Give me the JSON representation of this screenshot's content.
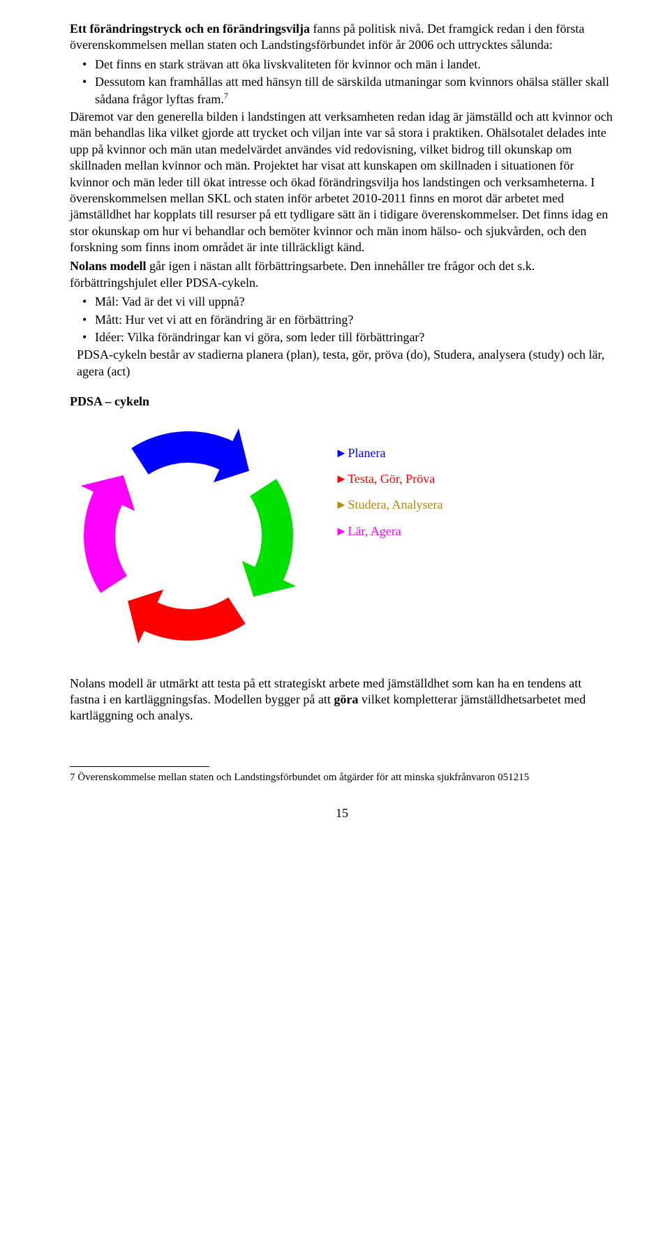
{
  "colors": {
    "text": "#000000",
    "planera": "#0000ff",
    "testa": "#ff0000",
    "studera": "#b8860b",
    "lar": "#ff00ff",
    "cycle_blue": "#0000ff",
    "cycle_green": "#00e000",
    "cycle_red": "#ff0000",
    "cycle_magenta": "#ff00ff",
    "background": "#ffffff"
  },
  "typography": {
    "body_font": "Times New Roman",
    "body_size_pt": 13,
    "footnote_size_pt": 11
  },
  "intro_line_bold": "Ett förändringstryck och en förändringsvilja",
  "intro_line_rest": " fanns på politisk nivå. Det framgick redan i den första överenskommelsen mellan staten och Landstingsförbundet inför år 2006 och uttrycktes sålunda:",
  "bullets1": [
    "Det finns en stark strävan att öka livskvaliteten för kvinnor och män i landet.",
    "Dessutom kan framhållas att med hänsyn till de särskilda utmaningar som kvinnors ohälsa ställer skall sådana frågor lyftas fram."
  ],
  "footnote_marker": "7",
  "body_after_bullets_part1": "Däremot var den generella bilden i landstingen att verksamheten redan idag är jämställd och att kvinnor och män behandlas lika vilket gjorde att trycket och viljan inte var så stora i praktiken. Ohälsotalet delades inte upp på kvinnor och män utan medelvärdet användes vid redovisning, vilket bidrog till okunskap om skillnaden mellan kvinnor och män. Projektet har visat att kunskapen om skillnaden i situationen för kvinnor och män leder till ökat intresse och ökad förändringsvilja hos landstingen och verksamheterna. I överenskommelsen mellan SKL och staten inför arbetet 2010-2011 finns en morot där arbetet med jämställdhet har kopplats till resurser på ett tydligare sätt än i tidigare överenskommelser. Det finns idag en stor okunskap om hur vi behandlar och bemöter kvinnor och män inom hälso- och sjukvården, och den forskning som finns inom området är inte tillräckligt känd.",
  "nolans_bold": "Nolans modell",
  "nolans_rest": " går igen i nästan allt förbättringsarbete. Den innehåller tre frågor och det s.k. förbättringshjulet eller PDSA-cykeln.",
  "bullets2": [
    "Mål: Vad är det vi vill uppnå?",
    "Mått: Hur vet vi att en förändring är en förbättring?",
    "Idéer: Vilka förändringar kan vi göra, som leder till förbättringar?"
  ],
  "pdsa_expl": "PDSA-cykeln består av stadierna planera (plan), testa, gör, pröva (do), Studera, analysera (study) och lär, agera (act)",
  "section_title": "PDSA – cykeln",
  "legend": [
    {
      "label": "Planera",
      "color": "#0000ff"
    },
    {
      "label": "Testa, Gör, Pröva",
      "color": "#ff0000"
    },
    {
      "label": "Studera, Analysera",
      "color": "#b8860b"
    },
    {
      "label": "Lär, Agera",
      "color": "#ff00ff"
    }
  ],
  "diagram": {
    "type": "cycle-arrows",
    "segments": 4,
    "segment_colors": [
      "#ff00ff",
      "#0000ff",
      "#00e000",
      "#ff0000"
    ],
    "outer_radius": 150,
    "inner_radius": 105,
    "gap_deg": 14,
    "arrowhead_deg": 18,
    "background": "#ffffff"
  },
  "closing_para_part1": "Nolans modell är utmärkt att testa på ett strategiskt arbete med jämställdhet som kan ha en tendens att fastna i en kartläggningsfas. Modellen bygger på att ",
  "closing_bold": "göra",
  "closing_para_part2": " vilket kompletterar jämställdhetsarbetet med kartläggning och analys.",
  "footnote": "7 Överenskommelse mellan staten och Landstingsförbundet om åtgärder för att minska sjukfrånvaron 051215",
  "page_number": "15"
}
